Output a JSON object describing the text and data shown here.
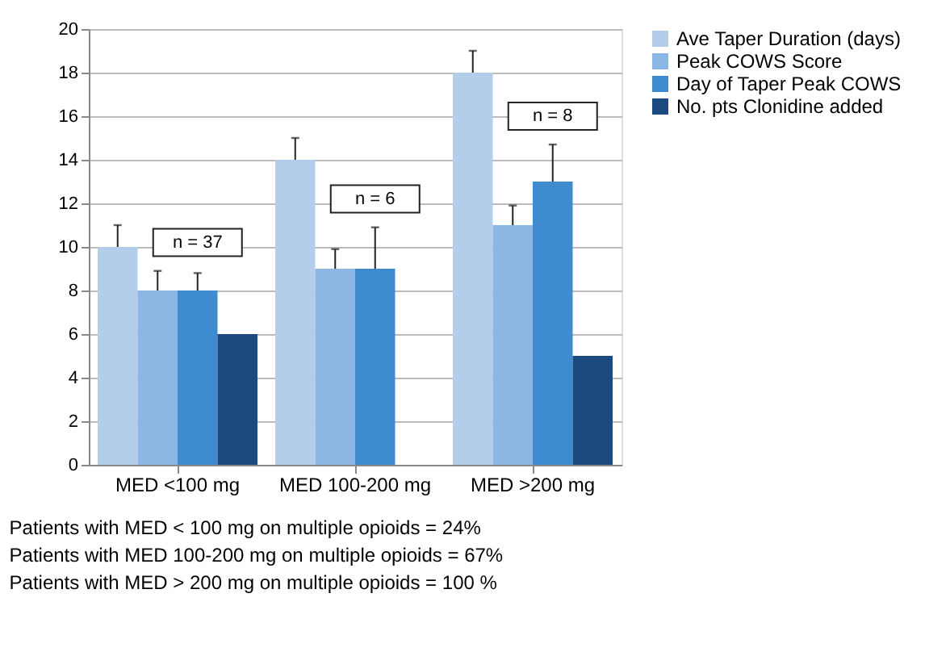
{
  "chart_data": {
    "type": "bar",
    "categories": [
      "MED <100 mg",
      "MED 100-200 mg",
      "MED >200 mg"
    ],
    "series": [
      {
        "name": "Ave Taper Duration (days)",
        "color": "#b4cdea",
        "values": [
          10,
          14,
          18
        ],
        "errors": [
          [
            10,
            11
          ],
          [
            14,
            15
          ],
          [
            18,
            19
          ]
        ]
      },
      {
        "name": "Peak COWS Score",
        "color": "#8cb6e3",
        "values": [
          8,
          9,
          11
        ],
        "errors": [
          [
            8,
            8.9
          ],
          [
            9,
            9.9
          ],
          [
            11,
            11.9
          ]
        ]
      },
      {
        "name": "Day of Taper Peak COWS",
        "color": "#3e8bcf",
        "values": [
          8,
          9,
          13
        ],
        "errors": [
          [
            8,
            8.8
          ],
          [
            9,
            10.9
          ],
          [
            13,
            14.7
          ]
        ]
      },
      {
        "name": "No. pts Clonidine added",
        "color": "#1b4a7e",
        "values": [
          6,
          null,
          5
        ]
      }
    ],
    "ylim": [
      0,
      20
    ],
    "yticks": [
      0,
      2,
      4,
      6,
      8,
      10,
      12,
      14,
      16,
      18,
      20
    ],
    "grid": "y",
    "legend": "right",
    "annotations": [
      "n = 37",
      "n = 6",
      "n = 8",
      "Patients with MED < 100 mg on multiple opioids = 24%",
      "Patients with MED 100-200 mg on multiple opioids =  67%",
      "Patients with MED > 200 mg on multiple opioids = 100 %"
    ]
  }
}
